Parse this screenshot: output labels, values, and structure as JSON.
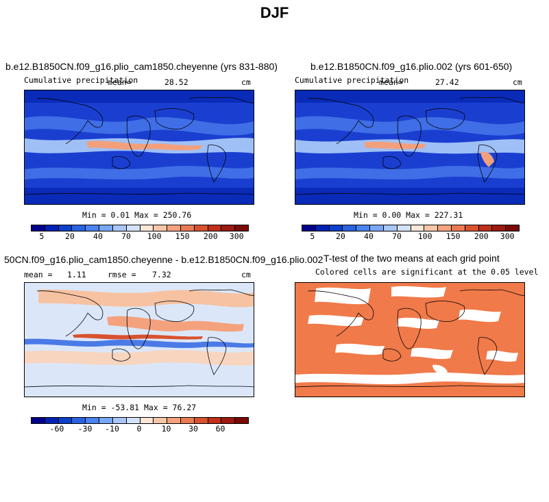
{
  "figure_title": "DJF",
  "panels": {
    "p1": {
      "title": "b.e12.B1850CN.f09_g16.plio_cam1850.cheyenne (yrs 831-880)",
      "var_label": "Cumulative precipitation",
      "mean_label": "mean=",
      "mean_value": "28.52",
      "units": "cm",
      "minmax": "Min =   0.01 Max = 250.76"
    },
    "p2": {
      "title": "b.e12.B1850CN.f09_g16.plio.002 (yrs 601-650)",
      "var_label": "Cumulative precipitation",
      "mean_label": "mean=",
      "mean_value": "27.42",
      "units": "cm",
      "minmax": "Min =   0.00 Max = 227.31"
    },
    "p3": {
      "title": "50CN.f09_g16.plio_cam1850.cheyenne - b.e12.B1850CN.f09_g16.plio.002",
      "mean_label": "mean =",
      "mean_value": "1.11",
      "rmse_label": "rmse =",
      "rmse_value": "7.32",
      "units": "cm",
      "minmax": "Min = -53.81 Max =  76.27"
    },
    "p4": {
      "title": "T-test of the two means at each grid point",
      "subtitle": "Colored cells are significant at the 0.05 level"
    }
  },
  "colorbars": {
    "precip": {
      "colors": [
        "#00008b",
        "#0022b4",
        "#0a40cc",
        "#2a62e0",
        "#4a82ee",
        "#7aa6f5",
        "#a8c6f8",
        "#d4e2f9",
        "#fbe6d8",
        "#f8c7a8",
        "#f4a27e",
        "#e97a52",
        "#d8522e",
        "#c0301b",
        "#9c1a10",
        "#7a0a06"
      ],
      "ticks": [
        "5",
        "20",
        "40",
        "70",
        "100",
        "150",
        "200",
        "300"
      ]
    },
    "diff": {
      "colors": [
        "#00008b",
        "#0022b4",
        "#0a40cc",
        "#2a62e0",
        "#4a82ee",
        "#7aa6f5",
        "#a8c6f8",
        "#d4e2f9",
        "#fbe6d8",
        "#f8c7a8",
        "#f4a27e",
        "#e97a52",
        "#d8522e",
        "#c0301b",
        "#9c1a10",
        "#7a0a06"
      ],
      "ticks": [
        "-60",
        "-30",
        "-10",
        "0",
        "10",
        "30",
        "60"
      ]
    }
  },
  "map_colors": {
    "precip_bg": "#1a3fd0",
    "precip_band": "#9fc0f6",
    "precip_high": "#f2a07c",
    "diff_bg": "#dbe7f8",
    "diff_pos": "#f7c2a2",
    "diff_neg": "#4a7ae6",
    "ttest_fill": "#f07a4a"
  }
}
